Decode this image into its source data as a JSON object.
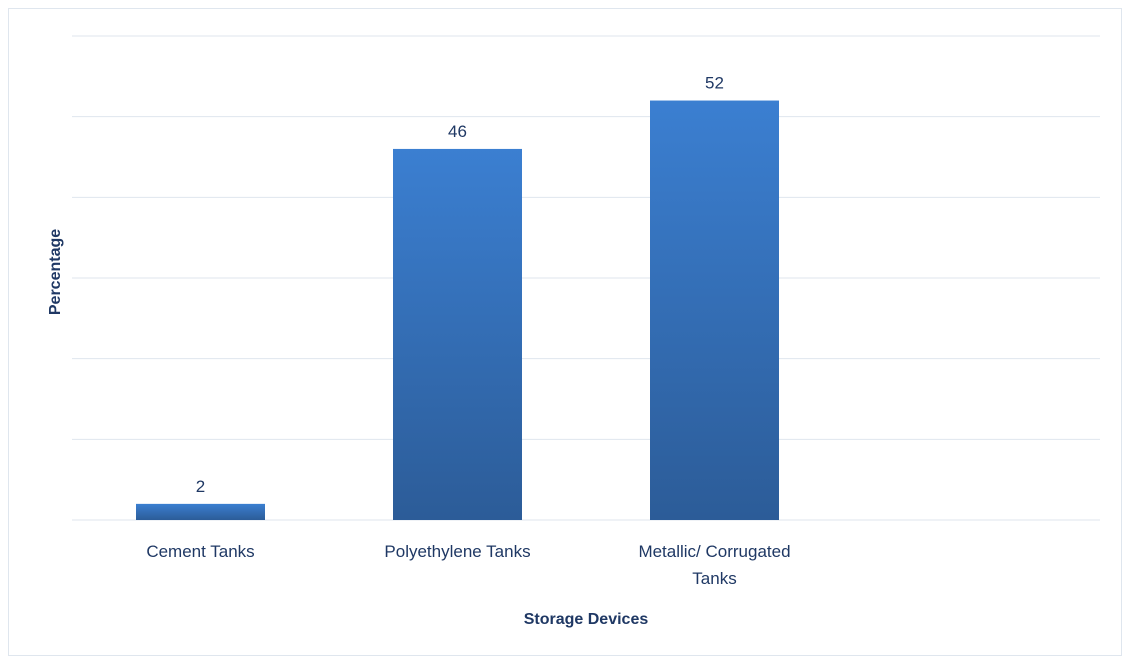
{
  "chart_data": {
    "type": "bar",
    "categories": [
      "Cement Tanks",
      "Polyethylene Tanks",
      "Metallic/ Corrugated Tanks"
    ],
    "category_lines": [
      [
        "Cement Tanks"
      ],
      [
        "Polyethylene Tanks"
      ],
      [
        "Metallic/ Corrugated",
        "Tanks"
      ]
    ],
    "values": [
      2,
      46,
      52
    ],
    "title": "",
    "xlabel": "Storage Devices",
    "ylabel": "Percentage",
    "ylim": [
      0,
      60
    ],
    "grid": true,
    "legend": "none",
    "colors": {
      "bar_top": "#3b7fd1",
      "bar_bottom": "#2c5c98",
      "text": "#1f3864",
      "grid": "#dfe6ee"
    }
  }
}
